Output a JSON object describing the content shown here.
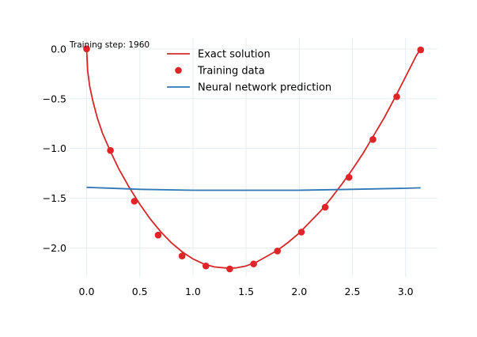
{
  "chart_data": {
    "type": "line",
    "title": "",
    "xlabel": "",
    "ylabel": "",
    "annotation": "Training step: 1960",
    "xlim": [
      -0.16,
      3.3
    ],
    "ylim": [
      -2.29,
      0.11
    ],
    "xticks": [
      "0.0",
      "0.5",
      "1.0",
      "1.5",
      "2.0",
      "2.5",
      "3.0"
    ],
    "xtick_values": [
      0.0,
      0.5,
      1.0,
      1.5,
      2.0,
      2.5,
      3.0
    ],
    "yticks": [
      "0.0",
      "−0.5",
      "−1.0",
      "−1.5",
      "−2.0"
    ],
    "ytick_values": [
      0.0,
      -0.5,
      -1.0,
      -1.5,
      -2.0
    ],
    "grid": true,
    "legend_position": "top-center",
    "legend": [
      "Exact solution",
      "Training data",
      "Neural network prediction"
    ],
    "series": [
      {
        "name": "Exact solution",
        "kind": "line",
        "color": "#d62728",
        "x": [
          0.0,
          0.01,
          0.03,
          0.06,
          0.1,
          0.15,
          0.22,
          0.3,
          0.4,
          0.5,
          0.6,
          0.7,
          0.8,
          0.9,
          1.0,
          1.1,
          1.2,
          1.3,
          1.34,
          1.4,
          1.5,
          1.6,
          1.7,
          1.8,
          1.9,
          2.0,
          2.1,
          2.2,
          2.3,
          2.4,
          2.5,
          2.6,
          2.7,
          2.8,
          2.9,
          3.0,
          3.1,
          3.1416
        ],
        "y": [
          0.0,
          -0.22,
          -0.38,
          -0.53,
          -0.69,
          -0.85,
          -1.02,
          -1.2,
          -1.39,
          -1.56,
          -1.71,
          -1.84,
          -1.95,
          -2.04,
          -2.11,
          -2.16,
          -2.19,
          -2.2,
          -2.2,
          -2.2,
          -2.18,
          -2.14,
          -2.08,
          -2.02,
          -1.94,
          -1.85,
          -1.74,
          -1.63,
          -1.5,
          -1.36,
          -1.21,
          -1.05,
          -0.87,
          -0.69,
          -0.49,
          -0.28,
          -0.07,
          0.0
        ]
      },
      {
        "name": "Training data",
        "kind": "scatter",
        "color": "#e02427",
        "x": [
          0.0,
          0.224,
          0.449,
          0.673,
          0.898,
          1.122,
          1.346,
          1.571,
          1.795,
          2.02,
          2.244,
          2.468,
          2.693,
          2.917,
          3.142
        ],
        "y": [
          0.0,
          -1.02,
          -1.53,
          -1.87,
          -2.08,
          -2.18,
          -2.21,
          -2.16,
          -2.03,
          -1.84,
          -1.59,
          -1.29,
          -0.91,
          -0.48,
          -0.01
        ]
      },
      {
        "name": "Neural network prediction",
        "kind": "line",
        "color": "#2f78b5",
        "x": [
          0.0,
          0.5,
          1.0,
          1.5,
          2.0,
          2.5,
          3.0,
          3.1416
        ],
        "y": [
          -1.39,
          -1.41,
          -1.42,
          -1.42,
          -1.42,
          -1.41,
          -1.4,
          -1.395
        ]
      }
    ]
  }
}
